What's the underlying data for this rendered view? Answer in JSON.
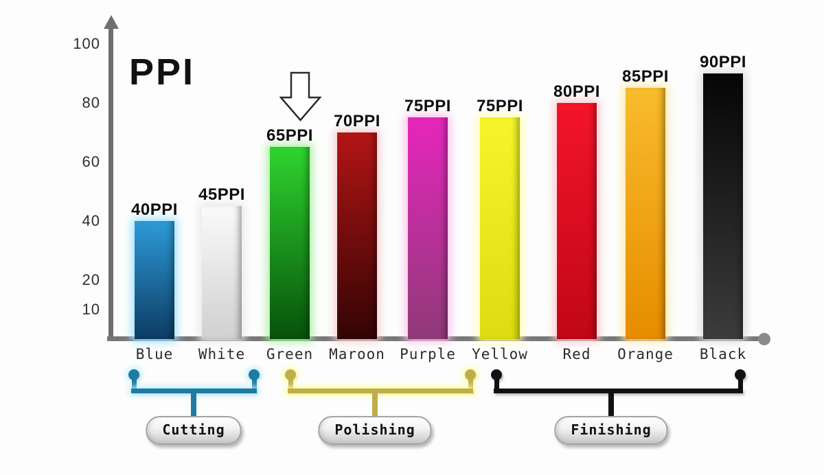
{
  "chart_data": {
    "type": "bar",
    "title": "PPI",
    "unit": "PPI",
    "categories": [
      "Blue",
      "White",
      "Green",
      "Maroon",
      "Purple",
      "Yellow",
      "Red",
      "Orange",
      "Black"
    ],
    "values": [
      40,
      45,
      65,
      70,
      75,
      75,
      80,
      85,
      90
    ],
    "value_labels": [
      "40PPI",
      "45PPI",
      "65PPI",
      "70PPI",
      "75PPI",
      "75PPI",
      "80PPI",
      "85PPI",
      "90PPI"
    ],
    "yticks": [
      100,
      80,
      60,
      40,
      20,
      10
    ],
    "ylim": [
      0,
      100
    ],
    "grid": false,
    "legend": false,
    "axis_color": "#6f6f6f",
    "bar_styles": [
      {
        "name": "Blue",
        "top": "#2e9ad8",
        "bottom": "#0c3c63",
        "glow": "#9fe2fb"
      },
      {
        "name": "White",
        "top": "#fafafa",
        "bottom": "#d0d0d0",
        "glow": "#e9e9e9"
      },
      {
        "name": "Green",
        "top": "#2fd42f",
        "bottom": "#07520a",
        "glow": "#aaf0a2"
      },
      {
        "name": "Maroon",
        "top": "#b31515",
        "bottom": "#330404",
        "glow": "#f3cfcf"
      },
      {
        "name": "Purple",
        "top": "#e626bc",
        "bottom": "#8f3a78",
        "glow": "#fbc0ec"
      },
      {
        "name": "Yellow",
        "top": "#f5f52a",
        "bottom": "#dcdc10",
        "glow": "#ffffb2"
      },
      {
        "name": "Red",
        "top": "#f3142a",
        "bottom": "#c00715",
        "glow": "#ffc9c9"
      },
      {
        "name": "Orange",
        "top": "#f8bc2c",
        "bottom": "#e78c00",
        "glow": "#ffe9a8"
      },
      {
        "name": "Black",
        "top": "#060606",
        "bottom": "#3c3c3c",
        "glow": "#dcdcdc"
      }
    ],
    "annotations": [
      {
        "type": "down-arrow",
        "target": "Green",
        "style": "hollow-outline"
      }
    ],
    "groups": [
      {
        "label": "Cutting",
        "from": "Blue",
        "to": "White",
        "color": "#1e7ba4",
        "glow": "#baeffb"
      },
      {
        "label": "Polishing",
        "from": "Green",
        "to": "Purple",
        "color": "#bfae48",
        "glow": "#ffff9c"
      },
      {
        "label": "Finishing",
        "from": "Yellow",
        "to": "Black",
        "color": "#111111",
        "glow": "none"
      }
    ]
  }
}
